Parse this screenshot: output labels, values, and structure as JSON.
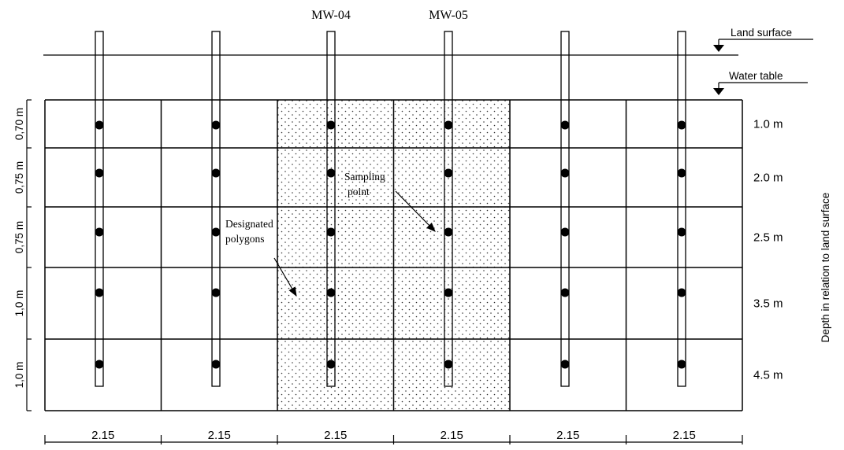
{
  "colors": {
    "line": "#000000",
    "dot": "#000000",
    "background": "#ffffff",
    "stipple": "#333333"
  },
  "wells": [
    {
      "label": ""
    },
    {
      "label": ""
    },
    {
      "label": "MW-04"
    },
    {
      "label": "MW-05"
    },
    {
      "label": ""
    },
    {
      "label": ""
    }
  ],
  "layers": [
    {
      "depth_label": "1.0 m",
      "thickness_label": "0,70 m"
    },
    {
      "depth_label": "2.0 m",
      "thickness_label": "0,75 m"
    },
    {
      "depth_label": "2.5 m",
      "thickness_label": "0,75 m"
    },
    {
      "depth_label": "3.5 m",
      "thickness_label": "1,0 m"
    },
    {
      "depth_label": "4.5 m",
      "thickness_label": "1,0 m"
    }
  ],
  "columns": [
    {
      "width_label": "2.15",
      "designated": false
    },
    {
      "width_label": "2.15",
      "designated": false
    },
    {
      "width_label": "2.15",
      "designated": true
    },
    {
      "width_label": "2.15",
      "designated": true
    },
    {
      "width_label": "2.15",
      "designated": false
    },
    {
      "width_label": "2.15",
      "designated": false
    }
  ],
  "labels": {
    "land_surface": "Land surface",
    "water_table": "Water table",
    "depth_axis": "Depth in relation to land surface",
    "sampling_point_1": "Sampling",
    "sampling_point_2": "point",
    "designated_1": "Designated",
    "designated_2": "polygons"
  }
}
